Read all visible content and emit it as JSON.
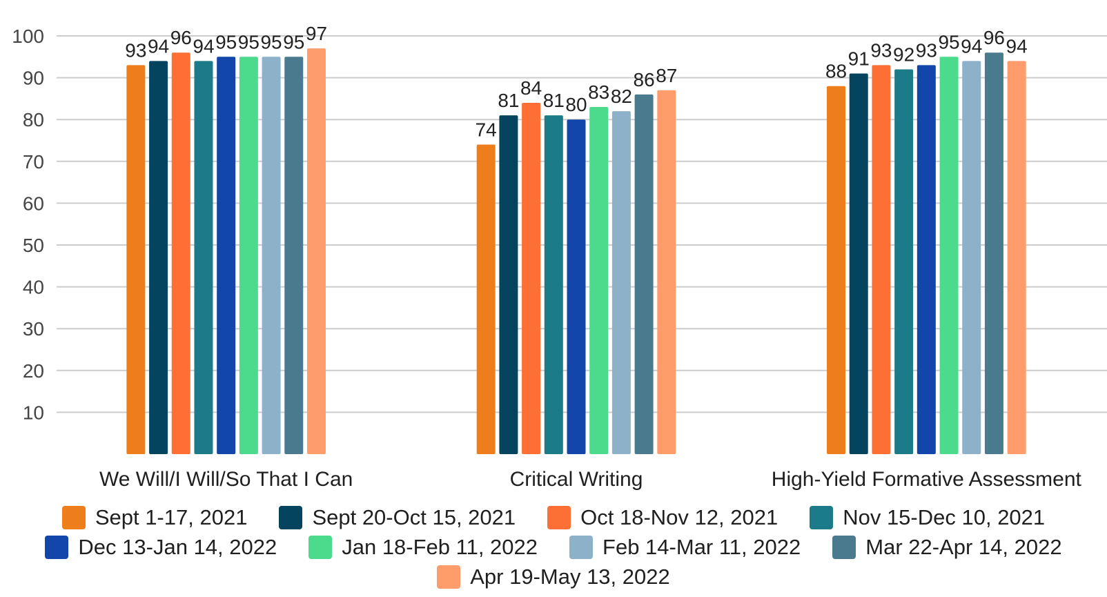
{
  "chart_data": {
    "type": "bar",
    "categories": [
      "We Will/I Will/So That I Can",
      "Critical Writing",
      "High-Yield Formative Assessment"
    ],
    "series": [
      {
        "name": "Sept 1-17, 2021",
        "color": "#EE7D1B",
        "values": [
          93,
          74,
          88
        ]
      },
      {
        "name": "Sept 20-Oct 15, 2021",
        "color": "#05445F",
        "values": [
          94,
          81,
          91
        ]
      },
      {
        "name": "Oct 18-Nov 12, 2021",
        "color": "#FD6F34",
        "values": [
          96,
          84,
          93
        ]
      },
      {
        "name": "Nov 15-Dec 10, 2021",
        "color": "#1B7B88",
        "values": [
          94,
          81,
          92
        ]
      },
      {
        "name": "Dec 13-Jan 14, 2022",
        "color": "#1346AA",
        "values": [
          95,
          80,
          93
        ]
      },
      {
        "name": "Jan 18-Feb 11, 2022",
        "color": "#4CDB8D",
        "values": [
          95,
          83,
          95
        ]
      },
      {
        "name": "Feb 14-Mar 11, 2022",
        "color": "#8CB1C9",
        "values": [
          95,
          82,
          94
        ]
      },
      {
        "name": "Mar 22-Apr 14, 2022",
        "color": "#4A7A8D",
        "values": [
          95,
          86,
          96
        ]
      },
      {
        "name": "Apr 19-May 13, 2022",
        "color": "#FF9C6C",
        "values": [
          97,
          87,
          94
        ]
      }
    ],
    "yticks": [
      10,
      20,
      30,
      40,
      50,
      60,
      70,
      80,
      90,
      100
    ],
    "ylim": [
      0,
      100
    ],
    "grid": true,
    "legend_position": "bottom",
    "title": "",
    "xlabel": "",
    "ylabel": ""
  }
}
